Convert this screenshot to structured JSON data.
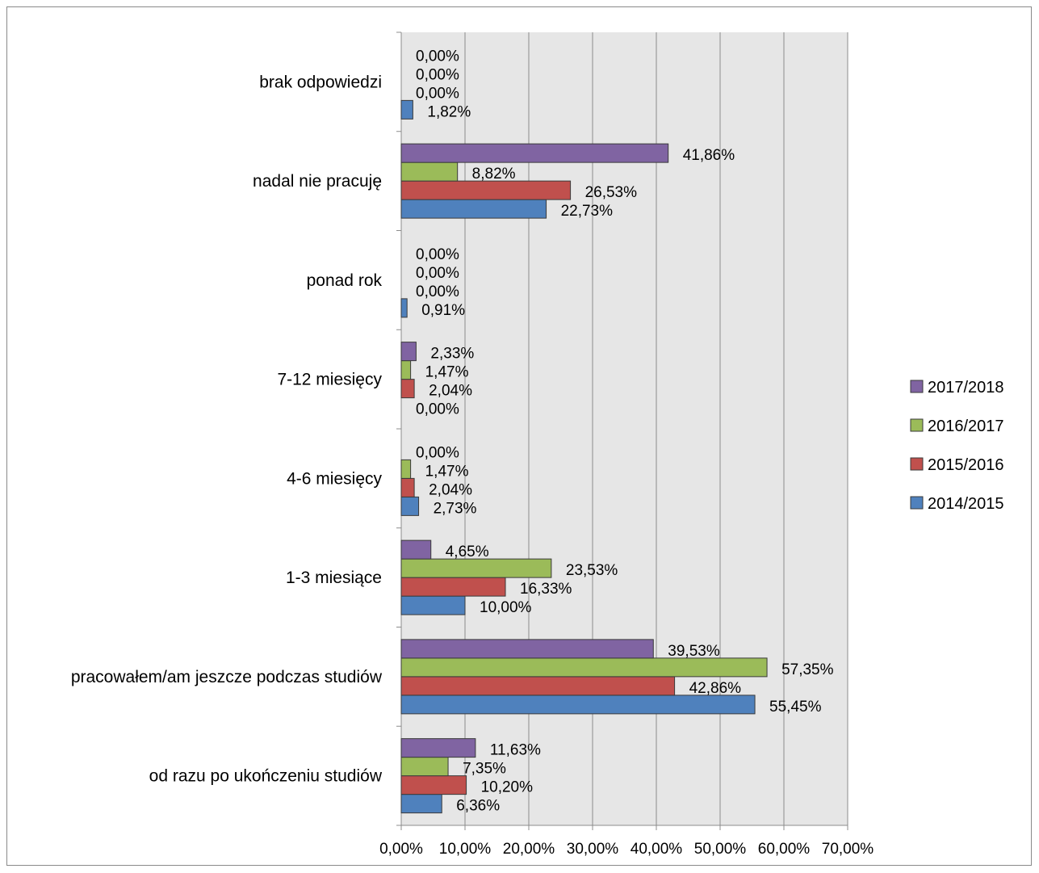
{
  "chart_data": {
    "type": "bar",
    "orientation": "horizontal",
    "categories": [
      "od razu po ukończeniu studiów",
      "pracowałem/am jeszcze podczas studiów",
      "1-3 miesiące",
      "4-6 miesięcy",
      "7-12 miesięcy",
      "ponad rok",
      "nadal nie pracuję",
      "brak odpowiedzi"
    ],
    "series": [
      {
        "name": "2014/2015",
        "color": "#4f81bd",
        "values": [
          6.36,
          55.45,
          10.0,
          2.73,
          0.0,
          0.91,
          22.73,
          1.82
        ],
        "labels": [
          "6,36%",
          "55,45%",
          "10,00%",
          "2,73%",
          "0,00%",
          "0,91%",
          "22,73%",
          "1,82%"
        ]
      },
      {
        "name": "2015/2016",
        "color": "#c0504d",
        "values": [
          10.2,
          42.86,
          16.33,
          2.04,
          2.04,
          0.0,
          26.53,
          0.0
        ],
        "labels": [
          "10,20%",
          "42,86%",
          "16,33%",
          "2,04%",
          "2,04%",
          "0,00%",
          "26,53%",
          "0,00%"
        ]
      },
      {
        "name": "2016/2017",
        "color": "#9bbb59",
        "values": [
          7.35,
          57.35,
          23.53,
          1.47,
          1.47,
          0.0,
          8.82,
          0.0
        ],
        "labels": [
          "7,35%",
          "57,35%",
          "23,53%",
          "1,47%",
          "1,47%",
          "0,00%",
          "8,82%",
          "0,00%"
        ]
      },
      {
        "name": "2017/2018",
        "color": "#8064a2",
        "values": [
          11.63,
          39.53,
          4.65,
          0.0,
          2.33,
          0.0,
          41.86,
          0.0
        ],
        "labels": [
          "11,63%",
          "39,53%",
          "4,65%",
          "0,00%",
          "2,33%",
          "0,00%",
          "41,86%",
          "0,00%"
        ]
      }
    ],
    "x_ticks": [
      "0,00%",
      "10,00%",
      "20,00%",
      "30,00%",
      "40,00%",
      "50,00%",
      "60,00%",
      "70,00%"
    ],
    "xlim": [
      0,
      70
    ],
    "grid": true,
    "legend_position": "right",
    "title": "",
    "xlabel": "",
    "ylabel": ""
  }
}
